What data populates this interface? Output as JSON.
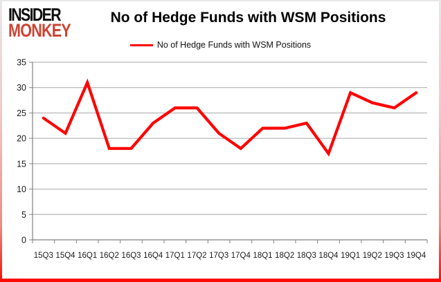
{
  "brand": {
    "line1": "INSIDER",
    "line2": "MONKEY",
    "color": "#cc4433"
  },
  "header": {
    "title": "No of Hedge Funds with WSM Positions"
  },
  "legend": {
    "label": "No of Hedge Funds with WSM Positions",
    "line_color": "#ff0000"
  },
  "chart_data": {
    "type": "line",
    "title": "No of Hedge Funds with WSM Positions",
    "categories": [
      "15Q3",
      "15Q4",
      "16Q1",
      "16Q2",
      "16Q3",
      "16Q4",
      "17Q1",
      "17Q2",
      "17Q3",
      "17Q4",
      "18Q1",
      "18Q2",
      "18Q3",
      "18Q4",
      "19Q1",
      "19Q2",
      "19Q3",
      "19Q4"
    ],
    "series": [
      {
        "name": "No of Hedge Funds with WSM Positions",
        "color": "#ff0000",
        "values": [
          24,
          21,
          31,
          18,
          18,
          23,
          26,
          26,
          21,
          18,
          22,
          22,
          23,
          17,
          29,
          27,
          26,
          29
        ]
      }
    ],
    "xlabel": "",
    "ylabel": "",
    "ylim": [
      0,
      35
    ],
    "ytick_step": 5,
    "grid": "horizontal",
    "legend_position": "top-center",
    "gridline_color": "#a6a6a6",
    "axis_color": "#808080",
    "tick_label_color": "#1a1a1a"
  }
}
